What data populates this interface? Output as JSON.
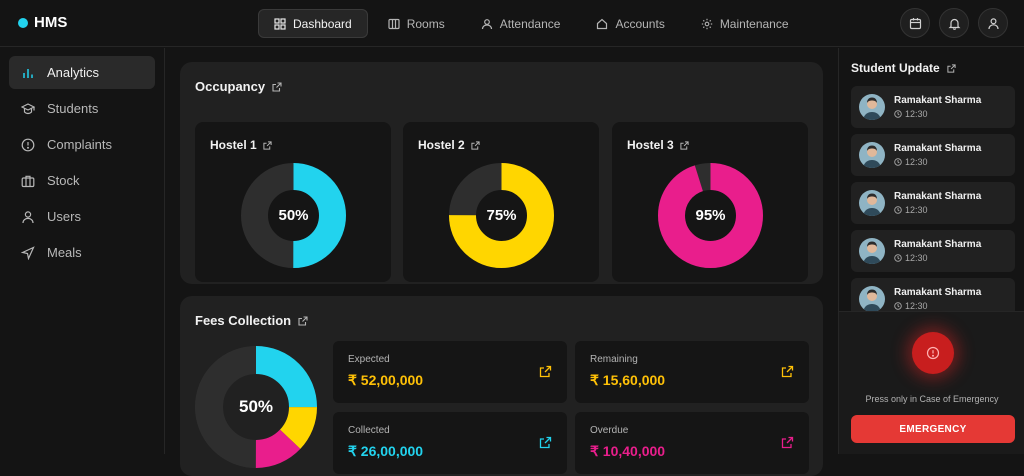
{
  "brand": {
    "name": "HMS"
  },
  "nav": [
    {
      "label": "Dashboard",
      "icon": "grid-icon",
      "active": true
    },
    {
      "label": "Rooms",
      "icon": "columns-icon"
    },
    {
      "label": "Attendance",
      "icon": "user-icon"
    },
    {
      "label": "Accounts",
      "icon": "home-icon"
    },
    {
      "label": "Maintenance",
      "icon": "sun-icon"
    }
  ],
  "sidebar": {
    "items": [
      {
        "label": "Analytics",
        "icon": "bar-chart-icon",
        "active": true
      },
      {
        "label": "Students",
        "icon": "graduation-cap-icon"
      },
      {
        "label": "Complaints",
        "icon": "alert-circle-icon"
      },
      {
        "label": "Stock",
        "icon": "briefcase-icon"
      },
      {
        "label": "Users",
        "icon": "user-icon"
      },
      {
        "label": "Meals",
        "icon": "navigation-icon"
      }
    ]
  },
  "occupancy": {
    "title": "Occupancy",
    "hostels": [
      {
        "name": "Hostel 1",
        "percent_label": "50%",
        "value": 0.5,
        "color": "#22d3ee"
      },
      {
        "name": "Hostel 2",
        "percent_label": "75%",
        "value": 0.75,
        "color": "#ffd600"
      },
      {
        "name": "Hostel 3",
        "percent_label": "95%",
        "value": 0.95,
        "color": "#e91e8c"
      }
    ]
  },
  "fees": {
    "title": "Fees Collection",
    "percent_label": "50%",
    "segments": [
      {
        "value": 0.25,
        "color": "#22d3ee"
      },
      {
        "value": 0.12,
        "color": "#ffd600"
      },
      {
        "value": 0.13,
        "color": "#e91e8c"
      },
      {
        "value": 0.5,
        "color": "#2e2e2e"
      }
    ],
    "stats": [
      {
        "label": "Expected",
        "value": "₹ 52,00,000",
        "color": "#ffc107"
      },
      {
        "label": "Remaining",
        "value": "₹ 15,60,000",
        "color": "#ffc107"
      },
      {
        "label": "Collected",
        "value": "₹ 26,00,000",
        "color": "#22d3ee"
      },
      {
        "label": "Overdue",
        "value": "₹ 10,40,000",
        "color": "#e91e8c"
      }
    ]
  },
  "student_update": {
    "title": "Student Update",
    "items": [
      {
        "name": "Ramakant Sharma",
        "time": "12:30"
      },
      {
        "name": "Ramakant Sharma",
        "time": "12:30"
      },
      {
        "name": "Ramakant Sharma",
        "time": "12:30"
      },
      {
        "name": "Ramakant Sharma",
        "time": "12:30"
      },
      {
        "name": "Ramakant Sharma",
        "time": "12:30"
      }
    ]
  },
  "emergency": {
    "note": "Press only in Case of Emergency",
    "button_label": "EMERGENCY"
  }
}
